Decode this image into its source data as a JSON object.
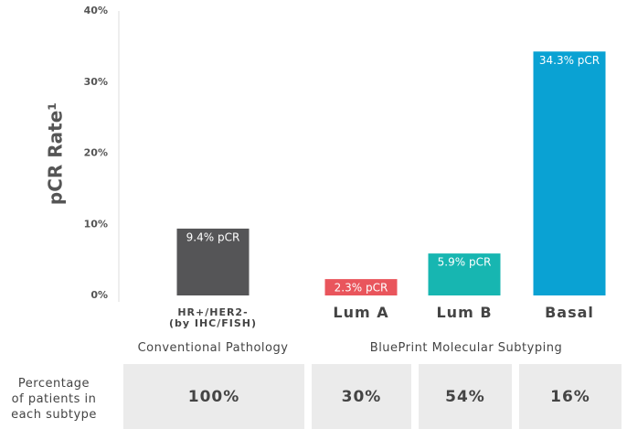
{
  "chart_data": {
    "type": "bar",
    "y_label": "pCR Rate¹",
    "categories": [
      "HR+/HER2-\n(by IHC/FISH)",
      "Lum A",
      "Lum B",
      "Basal"
    ],
    "values": [
      9.4,
      2.3,
      5.9,
      34.3
    ],
    "value_labels": [
      "9.4% pCR",
      "2.3% pCR",
      "5.9% pCR",
      "34.3% pCR"
    ],
    "colors": [
      "#555557",
      "#e9555c",
      "#17b6b1",
      "#0aa2d3"
    ],
    "ylim": [
      0,
      40
    ],
    "yticks": [
      {
        "value": 0,
        "label": "0%"
      },
      {
        "value": 10,
        "label": "10%"
      },
      {
        "value": 20,
        "label": "20%"
      },
      {
        "value": 30,
        "label": "30%"
      },
      {
        "value": 40,
        "label": "40%"
      }
    ],
    "groups": [
      "Conventional Pathology",
      "BluePrint Molecular Subtyping"
    ]
  },
  "table": {
    "row_label": "Percentage\nof patients in\neach subtype",
    "cells": [
      "100%",
      "30%",
      "54%",
      "16%"
    ]
  }
}
